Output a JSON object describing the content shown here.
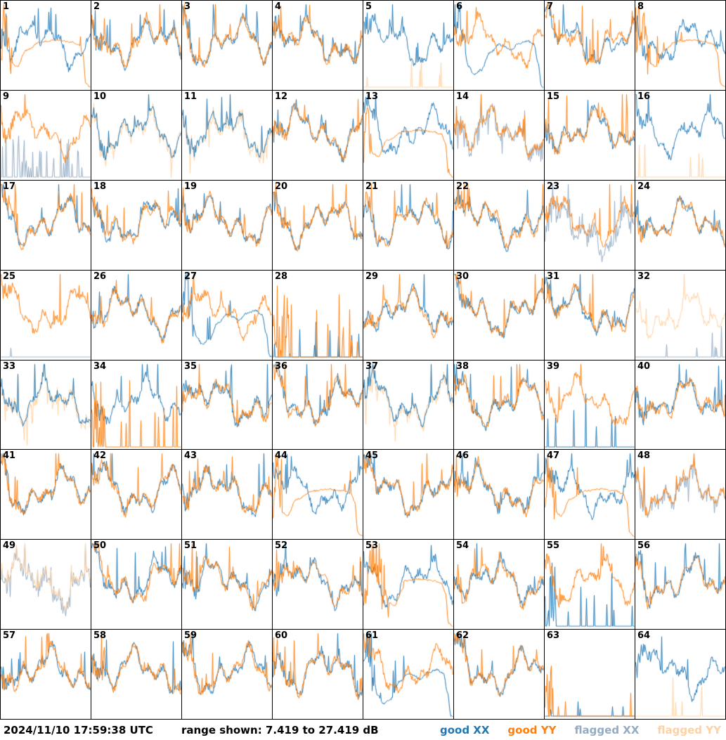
{
  "status_bar": {
    "timestamp": "2024/11/10 17:59:38 UTC",
    "range_label": "range shown: 7.419 to 27.419 dB",
    "legend": [
      {
        "label": "good XX",
        "key": "good_xx"
      },
      {
        "label": "good YY",
        "key": "good_yy"
      },
      {
        "label": "flagged XX",
        "key": "flagged_xx"
      },
      {
        "label": "flagged YY",
        "key": "flagged_yy"
      }
    ]
  },
  "colors": {
    "good_xx": "#1f77b4",
    "good_yy": "#ff7f0e",
    "flagged_xx": "#93abc3",
    "flagged_yy": "#ffd1a2",
    "border": "#000000",
    "background": "#ffffff"
  },
  "chart_data": {
    "type": "line",
    "grid": {
      "rows": 8,
      "cols": 8
    },
    "title": "",
    "xlabel": "",
    "ylabel": "",
    "y_range_db": [
      7.419,
      27.419
    ],
    "legend_position": "bottom-right",
    "panels": [
      {
        "id": 1,
        "xx": {
          "status": "good",
          "shape": "noisy"
        },
        "yy": {
          "status": "good",
          "shape": "plateau",
          "params": {
            "left": 0.12
          }
        }
      },
      {
        "id": 2,
        "xx": {
          "status": "good",
          "shape": "noisy"
        },
        "yy": {
          "status": "good",
          "shape": "noisy"
        }
      },
      {
        "id": 3,
        "xx": {
          "status": "good",
          "shape": "noisy"
        },
        "yy": {
          "status": "good",
          "shape": "noisy"
        }
      },
      {
        "id": 4,
        "xx": {
          "status": "good",
          "shape": "noisy"
        },
        "yy": {
          "status": "good",
          "shape": "noisy"
        }
      },
      {
        "id": 5,
        "xx": {
          "status": "good",
          "shape": "noisy"
        },
        "yy": {
          "status": "flagged",
          "shape": "spikes",
          "params": {
            "count": 6,
            "max": 0.45
          }
        }
      },
      {
        "id": 6,
        "xx": {
          "status": "good",
          "shape": "bandpass"
        },
        "yy": {
          "status": "good",
          "shape": "noisy"
        }
      },
      {
        "id": 7,
        "xx": {
          "status": "good",
          "shape": "noisy"
        },
        "yy": {
          "status": "good",
          "shape": "noisy"
        }
      },
      {
        "id": 8,
        "xx": {
          "status": "good",
          "shape": "noisy"
        },
        "yy": {
          "status": "good",
          "shape": "plateau",
          "params": {
            "left": 0.16
          }
        }
      },
      {
        "id": 9,
        "xx": {
          "status": "flagged",
          "shape": "spikes",
          "params": {
            "count": 34,
            "max": 0.62
          }
        },
        "yy": {
          "status": "good",
          "shape": "noisy"
        }
      },
      {
        "id": 10,
        "xx": {
          "status": "good",
          "shape": "noisy"
        },
        "yy": {
          "status": "flagged",
          "shape": "track",
          "params": {
            "follows": "xx"
          }
        }
      },
      {
        "id": 11,
        "xx": {
          "status": "good",
          "shape": "noisy"
        },
        "yy": {
          "status": "flagged",
          "shape": "track",
          "params": {
            "follows": "xx"
          }
        }
      },
      {
        "id": 12,
        "xx": {
          "status": "good",
          "shape": "noisy"
        },
        "yy": {
          "status": "good",
          "shape": "noisy"
        }
      },
      {
        "id": 13,
        "xx": {
          "status": "good",
          "shape": "noisy"
        },
        "yy": {
          "status": "good",
          "shape": "plateau",
          "params": {
            "left": 0.1
          }
        }
      },
      {
        "id": 14,
        "xx": {
          "status": "flagged",
          "shape": "track",
          "params": {
            "follows": "yy"
          }
        },
        "yy": {
          "status": "good",
          "shape": "noisy"
        }
      },
      {
        "id": 15,
        "xx": {
          "status": "good",
          "shape": "noisy"
        },
        "yy": {
          "status": "good",
          "shape": "noisy"
        }
      },
      {
        "id": 16,
        "xx": {
          "status": "good",
          "shape": "noisy"
        },
        "yy": {
          "status": "flagged",
          "shape": "spikes",
          "params": {
            "count": 5,
            "max": 0.8
          }
        }
      },
      {
        "id": 17,
        "xx": {
          "status": "good",
          "shape": "noisy"
        },
        "yy": {
          "status": "good",
          "shape": "noisy"
        }
      },
      {
        "id": 18,
        "xx": {
          "status": "good",
          "shape": "noisy"
        },
        "yy": {
          "status": "good",
          "shape": "noisy"
        }
      },
      {
        "id": 19,
        "xx": {
          "status": "good",
          "shape": "noisy"
        },
        "yy": {
          "status": "good",
          "shape": "noisy"
        }
      },
      {
        "id": 20,
        "xx": {
          "status": "good",
          "shape": "noisy"
        },
        "yy": {
          "status": "good",
          "shape": "noisy"
        }
      },
      {
        "id": 21,
        "xx": {
          "status": "good",
          "shape": "noisy"
        },
        "yy": {
          "status": "good",
          "shape": "noisy"
        }
      },
      {
        "id": 22,
        "xx": {
          "status": "good",
          "shape": "noisy"
        },
        "yy": {
          "status": "good",
          "shape": "noisy"
        }
      },
      {
        "id": 23,
        "xx": {
          "status": "flagged",
          "shape": "noisy",
          "params": {
            "amp": 2.2,
            "mean": -0.1,
            "spike_p": 0.12,
            "spike_h": 0.5
          }
        },
        "yy": {
          "status": "good",
          "shape": "noisy"
        }
      },
      {
        "id": 24,
        "xx": {
          "status": "good",
          "shape": "noisy"
        },
        "yy": {
          "status": "good",
          "shape": "noisy"
        }
      },
      {
        "id": 25,
        "xx": {
          "status": "flagged",
          "shape": "spikes",
          "params": {
            "count": 1,
            "max": 0.28
          }
        },
        "yy": {
          "status": "good",
          "shape": "noisy"
        }
      },
      {
        "id": 26,
        "xx": {
          "status": "good",
          "shape": "noisy"
        },
        "yy": {
          "status": "good",
          "shape": "noisy"
        }
      },
      {
        "id": 27,
        "xx": {
          "status": "good",
          "shape": "bandpass"
        },
        "yy": {
          "status": "good",
          "shape": "noisy"
        }
      },
      {
        "id": 28,
        "xx": {
          "status": "good",
          "shape": "spikes",
          "params": {
            "count": 8,
            "max": 0.65
          }
        },
        "yy": {
          "status": "good",
          "shape": "spikes",
          "params": {
            "cluster": 0.2,
            "count": 9,
            "max": 0.95
          }
        }
      },
      {
        "id": 29,
        "xx": {
          "status": "good",
          "shape": "noisy"
        },
        "yy": {
          "status": "good",
          "shape": "noisy"
        }
      },
      {
        "id": 30,
        "xx": {
          "status": "good",
          "shape": "noisy"
        },
        "yy": {
          "status": "good",
          "shape": "noisy"
        }
      },
      {
        "id": 31,
        "xx": {
          "status": "good",
          "shape": "noisy"
        },
        "yy": {
          "status": "good",
          "shape": "noisy"
        }
      },
      {
        "id": 32,
        "xx": {
          "status": "flagged",
          "shape": "spikes",
          "params": {
            "count": 6,
            "max": 0.55
          }
        },
        "yy": {
          "status": "flagged",
          "shape": "noisy",
          "params": {
            "mean": -0.04
          }
        }
      },
      {
        "id": 33,
        "xx": {
          "status": "good",
          "shape": "noisy"
        },
        "yy": {
          "status": "flagged",
          "shape": "track",
          "params": {
            "follows": "xx"
          }
        }
      },
      {
        "id": 34,
        "xx": {
          "status": "good",
          "shape": "noisy"
        },
        "yy": {
          "status": "good",
          "shape": "spikes",
          "params": {
            "cluster": 0.15,
            "count": 9,
            "max": 0.95
          }
        }
      },
      {
        "id": 35,
        "xx": {
          "status": "good",
          "shape": "noisy"
        },
        "yy": {
          "status": "good",
          "shape": "noisy"
        }
      },
      {
        "id": 36,
        "xx": {
          "status": "good",
          "shape": "noisy"
        },
        "yy": {
          "status": "good",
          "shape": "noisy"
        }
      },
      {
        "id": 37,
        "xx": {
          "status": "good",
          "shape": "noisy"
        },
        "yy": {
          "status": "flagged",
          "shape": "track",
          "params": {
            "follows": "xx"
          }
        }
      },
      {
        "id": 38,
        "xx": {
          "status": "good",
          "shape": "noisy"
        },
        "yy": {
          "status": "good",
          "shape": "noisy"
        }
      },
      {
        "id": 39,
        "xx": {
          "status": "good",
          "shape": "spikes",
          "params": {
            "count": 7,
            "max": 0.95
          }
        },
        "yy": {
          "status": "good",
          "shape": "noisy"
        }
      },
      {
        "id": 40,
        "xx": {
          "status": "good",
          "shape": "noisy"
        },
        "yy": {
          "status": "good",
          "shape": "noisy"
        }
      },
      {
        "id": 41,
        "xx": {
          "status": "good",
          "shape": "noisy"
        },
        "yy": {
          "status": "good",
          "shape": "noisy"
        }
      },
      {
        "id": 42,
        "xx": {
          "status": "good",
          "shape": "noisy"
        },
        "yy": {
          "status": "good",
          "shape": "noisy"
        }
      },
      {
        "id": 43,
        "xx": {
          "status": "good",
          "shape": "noisy"
        },
        "yy": {
          "status": "good",
          "shape": "noisy"
        }
      },
      {
        "id": 44,
        "xx": {
          "status": "good",
          "shape": "noisy"
        },
        "yy": {
          "status": "good",
          "shape": "plateau",
          "params": {
            "left": 0.1
          }
        }
      },
      {
        "id": 45,
        "xx": {
          "status": "good",
          "shape": "noisy"
        },
        "yy": {
          "status": "good",
          "shape": "noisy"
        }
      },
      {
        "id": 46,
        "xx": {
          "status": "good",
          "shape": "noisy"
        },
        "yy": {
          "status": "good",
          "shape": "noisy"
        }
      },
      {
        "id": 47,
        "xx": {
          "status": "good",
          "shape": "noisy"
        },
        "yy": {
          "status": "good",
          "shape": "plateau",
          "params": {
            "left": 0.12
          }
        }
      },
      {
        "id": 48,
        "xx": {
          "status": "flagged",
          "shape": "track",
          "params": {
            "follows": "yy"
          }
        },
        "yy": {
          "status": "good",
          "shape": "noisy"
        }
      },
      {
        "id": 49,
        "xx": {
          "status": "flagged",
          "shape": "track",
          "params": {
            "follows": "yy"
          }
        },
        "yy": {
          "status": "flagged",
          "shape": "noisy"
        }
      },
      {
        "id": 50,
        "xx": {
          "status": "good",
          "shape": "noisy"
        },
        "yy": {
          "status": "good",
          "shape": "noisy"
        }
      },
      {
        "id": 51,
        "xx": {
          "status": "good",
          "shape": "noisy"
        },
        "yy": {
          "status": "good",
          "shape": "noisy"
        }
      },
      {
        "id": 52,
        "xx": {
          "status": "good",
          "shape": "noisy"
        },
        "yy": {
          "status": "good",
          "shape": "noisy",
          "params": {
            "calm_mid": true
          }
        }
      },
      {
        "id": 53,
        "xx": {
          "status": "good",
          "shape": "noisy"
        },
        "yy": {
          "status": "good",
          "shape": "plateau",
          "params": {
            "left": 0.28
          }
        }
      },
      {
        "id": 54,
        "xx": {
          "status": "good",
          "shape": "noisy"
        },
        "yy": {
          "status": "good",
          "shape": "noisy"
        }
      },
      {
        "id": 55,
        "xx": {
          "status": "good",
          "shape": "spikes",
          "params": {
            "cluster": 0.12,
            "count": 10,
            "max": 0.85
          }
        },
        "yy": {
          "status": "good",
          "shape": "noisy"
        }
      },
      {
        "id": 56,
        "xx": {
          "status": "good",
          "shape": "noisy"
        },
        "yy": {
          "status": "good",
          "shape": "noisy",
          "params": {
            "calm_mid": true
          }
        }
      },
      {
        "id": 57,
        "xx": {
          "status": "good",
          "shape": "noisy"
        },
        "yy": {
          "status": "good",
          "shape": "noisy"
        }
      },
      {
        "id": 58,
        "xx": {
          "status": "good",
          "shape": "noisy"
        },
        "yy": {
          "status": "good",
          "shape": "noisy"
        }
      },
      {
        "id": 59,
        "xx": {
          "status": "good",
          "shape": "noisy"
        },
        "yy": {
          "status": "good",
          "shape": "noisy"
        }
      },
      {
        "id": 60,
        "xx": {
          "status": "good",
          "shape": "noisy"
        },
        "yy": {
          "status": "good",
          "shape": "noisy"
        }
      },
      {
        "id": 61,
        "xx": {
          "status": "good",
          "shape": "bandpass"
        },
        "yy": {
          "status": "good",
          "shape": "noisy"
        }
      },
      {
        "id": 62,
        "xx": {
          "status": "good",
          "shape": "noisy"
        },
        "yy": {
          "status": "good",
          "shape": "noisy"
        }
      },
      {
        "id": 63,
        "xx": {
          "status": "good",
          "shape": "spikes",
          "params": {
            "count": 5,
            "max": 0.35
          }
        },
        "yy": {
          "status": "good",
          "shape": "spikes",
          "params": {
            "cluster": 0.09,
            "count": 3,
            "max": 0.6
          }
        }
      },
      {
        "id": 64,
        "xx": {
          "status": "good",
          "shape": "noisy"
        },
        "yy": {
          "status": "flagged",
          "shape": "spikes",
          "params": {
            "count": 5,
            "max": 0.55
          }
        }
      }
    ]
  }
}
